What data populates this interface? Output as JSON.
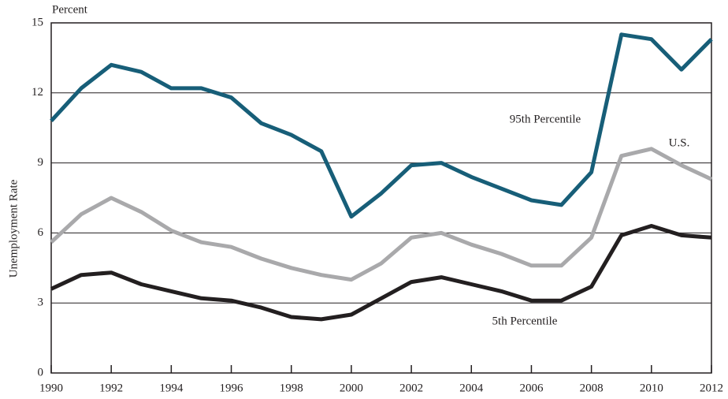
{
  "chart_data": {
    "type": "line",
    "y_unit_label": "Percent",
    "ylabel": "Unemployment Rate",
    "x": [
      1990,
      1991,
      1992,
      1993,
      1994,
      1995,
      1996,
      1997,
      1998,
      1999,
      2000,
      2001,
      2002,
      2003,
      2004,
      2005,
      2006,
      2007,
      2008,
      2009,
      2010,
      2011,
      2012
    ],
    "xlim": [
      1990,
      2012
    ],
    "xticks": [
      1990,
      1992,
      1994,
      1996,
      1998,
      2000,
      2002,
      2004,
      2006,
      2008,
      2010,
      2012
    ],
    "ylim": [
      0,
      15
    ],
    "yticks": [
      0,
      3,
      6,
      9,
      12,
      15
    ],
    "grid": true,
    "series": [
      {
        "name": "95th Percentile",
        "color": "#175e78",
        "values": [
          10.8,
          12.2,
          13.2,
          12.9,
          12.2,
          12.2,
          11.8,
          10.7,
          10.2,
          9.5,
          6.7,
          7.7,
          8.9,
          9.0,
          8.4,
          7.9,
          7.4,
          7.2,
          8.6,
          14.5,
          14.3,
          13.0,
          14.3
        ]
      },
      {
        "name": "U.S.",
        "color": "#a9a9ab",
        "values": [
          5.6,
          6.8,
          7.5,
          6.9,
          6.1,
          5.6,
          5.4,
          4.9,
          4.5,
          4.2,
          4.0,
          4.7,
          5.8,
          6.0,
          5.5,
          5.1,
          4.6,
          4.6,
          5.8,
          9.3,
          9.6,
          8.9,
          8.3
        ]
      },
      {
        "name": "5th Percentile",
        "color": "#231f20",
        "values": [
          3.6,
          4.2,
          4.3,
          3.8,
          3.5,
          3.2,
          3.1,
          2.8,
          2.4,
          2.3,
          2.5,
          3.2,
          3.9,
          4.1,
          3.8,
          3.5,
          3.1,
          3.1,
          3.7,
          5.9,
          6.3,
          5.9,
          5.8
        ]
      }
    ]
  }
}
